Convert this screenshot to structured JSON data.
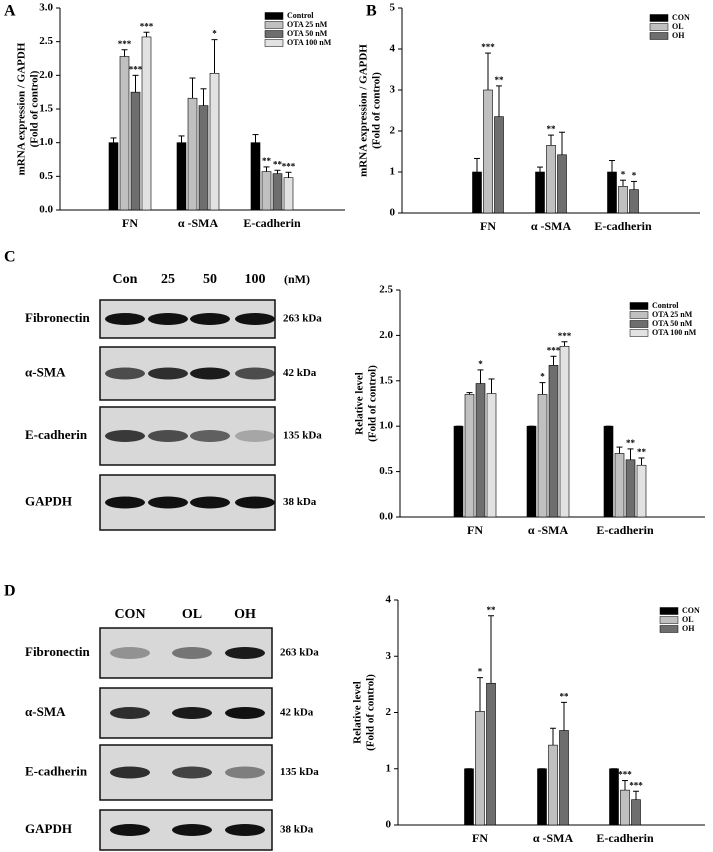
{
  "panels": [
    "A",
    "B",
    "C",
    "D"
  ],
  "blots": [
    {
      "lanes": [
        "Con",
        "25",
        "50",
        "100"
      ],
      "unit": "(nM)",
      "rows": [
        {
          "label": "Fibronectin",
          "size": "263 kDa"
        },
        {
          "label": "α-SMA",
          "size": "42 kDa"
        },
        {
          "label": "E-cadherin",
          "size": "135 kDa"
        },
        {
          "label": "GAPDH",
          "size": "38 kDa"
        }
      ]
    },
    {
      "lanes": [
        "CON",
        "OL",
        "OH"
      ],
      "rows": [
        {
          "label": "Fibronectin",
          "size": "263 kDa"
        },
        {
          "label": "α-SMA",
          "size": "42 kDa"
        },
        {
          "label": "E-cadherin",
          "size": "135 kDa"
        },
        {
          "label": "GAPDH",
          "size": "38 kDa"
        }
      ]
    }
  ],
  "chart_data": [
    {
      "type": "bar",
      "ylabel": [
        "mRNA expression / GAPDH",
        "(Fold of control)"
      ],
      "categories": [
        "FN",
        "α -SMA",
        "E-cadherin"
      ],
      "ylim": [
        0,
        3
      ],
      "yticks": [
        {
          "value": 0,
          "label": "0.0"
        },
        {
          "value": 0.5,
          "label": "0.5"
        },
        {
          "value": 1,
          "label": "1.0"
        },
        {
          "value": 1.5,
          "label": "1.5"
        },
        {
          "value": 2,
          "label": "2.0"
        },
        {
          "value": 2.5,
          "label": "2.5"
        },
        {
          "value": 3,
          "label": "3.0"
        }
      ],
      "series": [
        {
          "name": "Control",
          "color": "#000000",
          "values": [
            1.0,
            1.0,
            1.0
          ],
          "errors": [
            0.07,
            0.1,
            0.12
          ],
          "annotations": [
            null,
            null,
            null
          ]
        },
        {
          "name": "OTA 25 nM",
          "color": "#c0c0c0",
          "values": [
            2.28,
            1.66,
            0.57
          ],
          "errors": [
            0.1,
            0.3,
            0.07
          ],
          "annotations": [
            "***",
            null,
            "**"
          ]
        },
        {
          "name": "OTA 50 nM",
          "color": "#6e6e6e",
          "values": [
            1.75,
            1.55,
            0.54
          ],
          "errors": [
            0.25,
            0.25,
            0.05
          ],
          "annotations": [
            "***",
            null,
            "**"
          ]
        },
        {
          "name": "OTA 100 nM",
          "color": "#e2e2e2",
          "values": [
            2.57,
            2.03,
            0.48
          ],
          "errors": [
            0.07,
            0.5,
            0.08
          ],
          "annotations": [
            "***",
            "*",
            "***"
          ]
        }
      ]
    },
    {
      "type": "bar",
      "ylabel": [
        "mRNA expression / GAPDH",
        "(Fold of control)"
      ],
      "categories": [
        "FN",
        "α -SMA",
        "E-cadherin"
      ],
      "ylim": [
        0,
        5
      ],
      "yticks": [
        0,
        1,
        2,
        3,
        4,
        5
      ],
      "series": [
        {
          "name": "CON",
          "color": "#000000",
          "values": [
            1.0,
            1.0,
            1.0
          ],
          "errors": [
            0.33,
            0.12,
            0.28
          ],
          "annotations": [
            null,
            null,
            null
          ]
        },
        {
          "name": "OL",
          "color": "#c0c0c0",
          "values": [
            3.0,
            1.65,
            0.65
          ],
          "errors": [
            0.9,
            0.25,
            0.15
          ],
          "annotations": [
            "***",
            "**",
            "*"
          ]
        },
        {
          "name": "OH",
          "color": "#6e6e6e",
          "values": [
            2.35,
            1.42,
            0.57
          ],
          "errors": [
            0.75,
            0.55,
            0.2
          ],
          "annotations": [
            "**",
            null,
            "*"
          ]
        }
      ]
    },
    {
      "type": "bar",
      "ylabel": [
        "Relative level",
        "(Fold of control)"
      ],
      "categories": [
        "FN",
        "α -SMA",
        "E-cadherin"
      ],
      "ylim": [
        0,
        2.5
      ],
      "yticks": [
        {
          "value": 0,
          "label": "0.0"
        },
        {
          "value": 0.5,
          "label": "0.5"
        },
        {
          "value": 1,
          "label": "1.0"
        },
        {
          "value": 1.5,
          "label": "1.5"
        },
        {
          "value": 2,
          "label": "2.0"
        },
        {
          "value": 2.5,
          "label": "2.5"
        }
      ],
      "series": [
        {
          "name": "Control",
          "color": "#000000",
          "values": [
            1.0,
            1.0,
            1.0
          ],
          "errors": [
            0,
            0,
            0
          ],
          "annotations": [
            null,
            null,
            null
          ]
        },
        {
          "name": "OTA 25 nM",
          "color": "#c0c0c0",
          "values": [
            1.35,
            1.35,
            0.7
          ],
          "errors": [
            0.02,
            0.13,
            0.07
          ],
          "annotations": [
            null,
            "*",
            null
          ]
        },
        {
          "name": "OTA 50 nM",
          "color": "#6e6e6e",
          "values": [
            1.47,
            1.67,
            0.63
          ],
          "errors": [
            0.15,
            0.1,
            0.12
          ],
          "annotations": [
            "*",
            "***",
            "**"
          ]
        },
        {
          "name": "OTA 100 nM",
          "color": "#e2e2e2",
          "values": [
            1.36,
            1.88,
            0.57
          ],
          "errors": [
            0.16,
            0.05,
            0.08
          ],
          "annotations": [
            null,
            "***",
            "**"
          ]
        }
      ]
    },
    {
      "type": "bar",
      "ylabel": [
        "Relative level",
        "(Fold of control)"
      ],
      "categories": [
        "FN",
        "α -SMA",
        "E-cadherin"
      ],
      "ylim": [
        0,
        4
      ],
      "yticks": [
        0,
        1,
        2,
        3,
        4
      ],
      "series": [
        {
          "name": "CON",
          "color": "#000000",
          "values": [
            1.0,
            1.0,
            1.0
          ],
          "errors": [
            0,
            0,
            0
          ],
          "annotations": [
            null,
            null,
            null
          ]
        },
        {
          "name": "OL",
          "color": "#c0c0c0",
          "values": [
            2.02,
            1.42,
            0.62
          ],
          "errors": [
            0.6,
            0.3,
            0.17
          ],
          "annotations": [
            "*",
            null,
            "***"
          ]
        },
        {
          "name": "OH",
          "color": "#6e6e6e",
          "values": [
            2.52,
            1.68,
            0.45
          ],
          "errors": [
            1.2,
            0.5,
            0.15
          ],
          "annotations": [
            "**",
            "**",
            "***"
          ]
        }
      ]
    }
  ]
}
